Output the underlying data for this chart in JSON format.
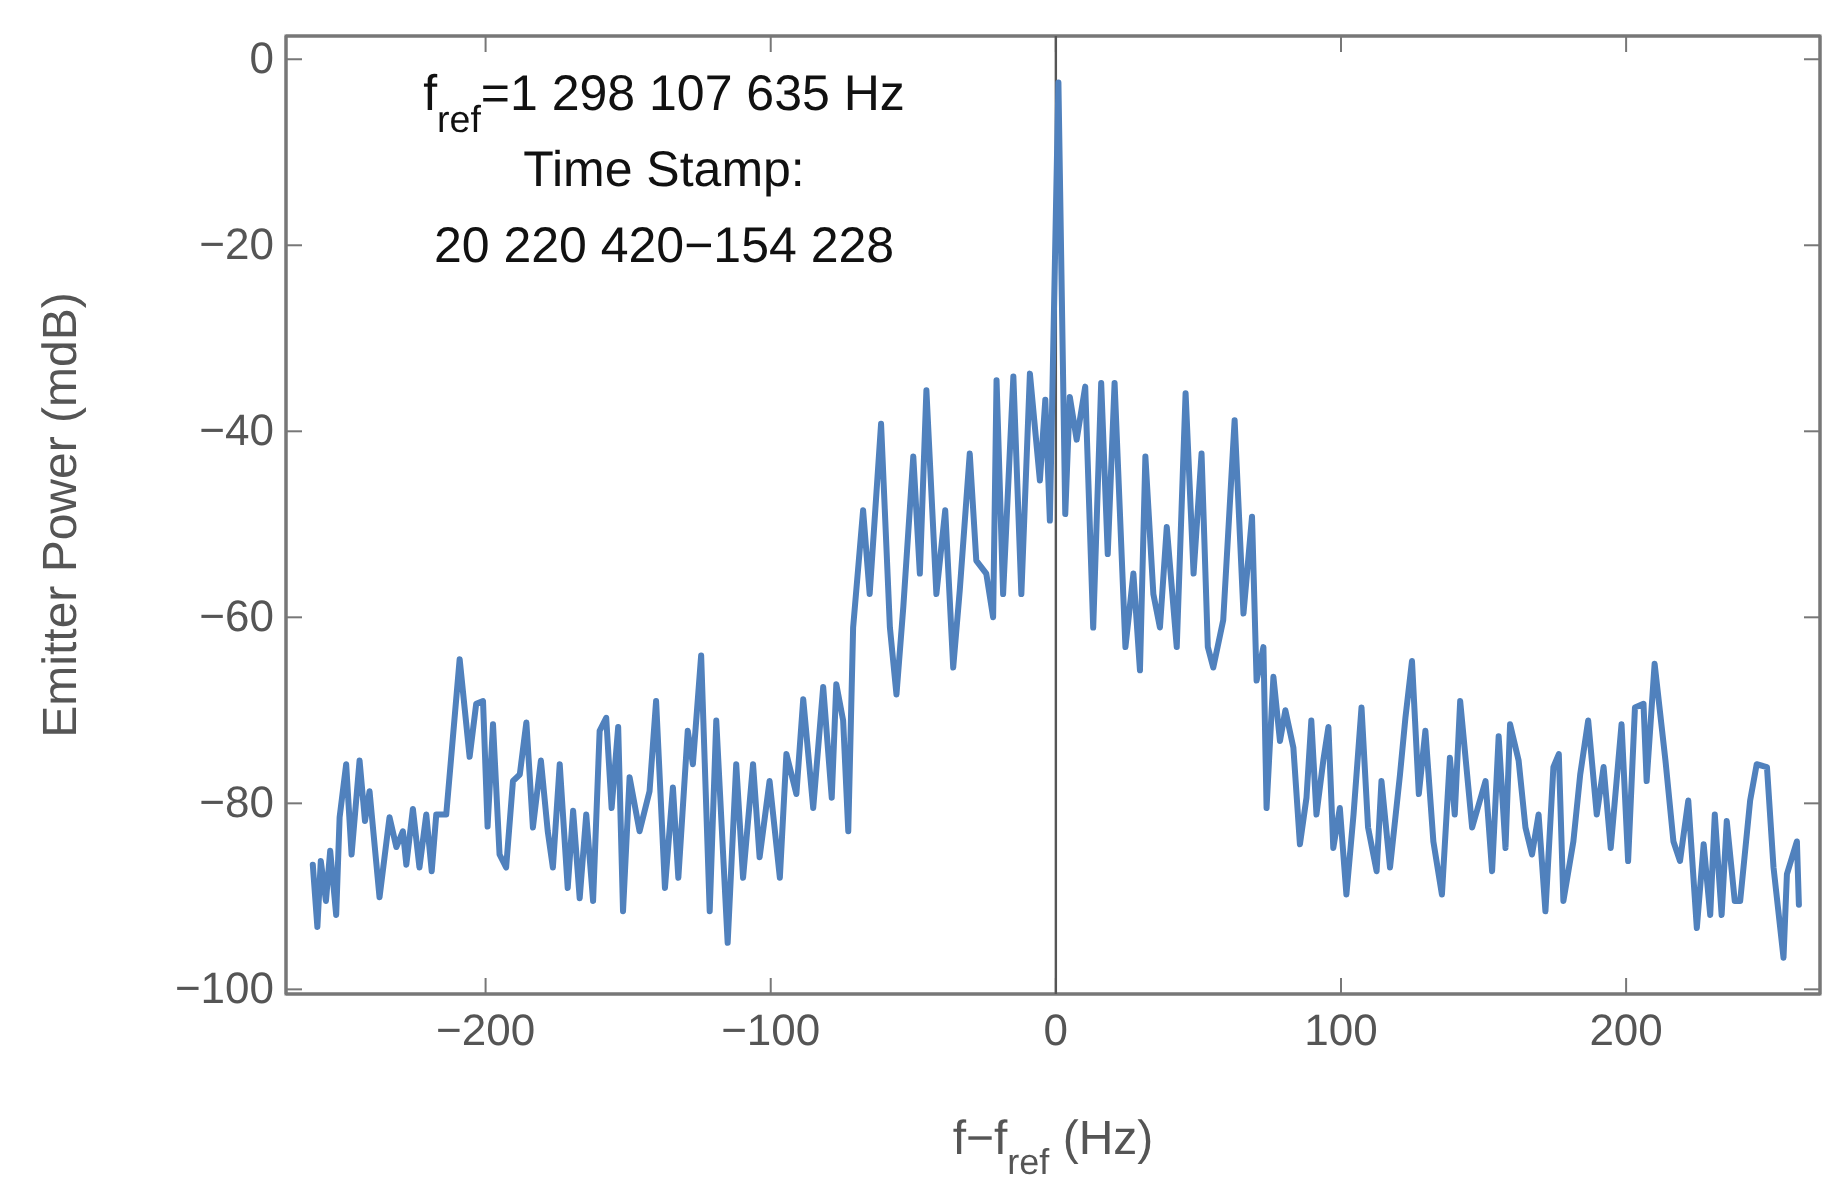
{
  "chart_data": {
    "type": "line",
    "xlabel": "f−f$_{ref}$ (Hz)",
    "ylabel": "Emitter Power (mdB)",
    "xlim": [
      -270,
      268
    ],
    "ylim": [
      -100.5,
      2.5
    ],
    "xticks": [
      {
        "value": -200,
        "label": "−200"
      },
      {
        "value": -100,
        "label": "−100"
      },
      {
        "value": 0,
        "label": "0"
      },
      {
        "value": 100,
        "label": "100"
      },
      {
        "value": 200,
        "label": "200"
      }
    ],
    "yticks": [
      {
        "value": 0,
        "label": "0"
      },
      {
        "value": -20,
        "label": "−20"
      },
      {
        "value": -40,
        "label": "−40"
      },
      {
        "value": -60,
        "label": "−60"
      },
      {
        "value": -80,
        "label": "−80"
      },
      {
        "value": -100,
        "label": "−100"
      }
    ],
    "grid": false,
    "marker": "none",
    "line_style": "solid",
    "ref_lines": [
      {
        "axis": "x",
        "value": 0,
        "color": "#555555"
      }
    ],
    "annotations": [
      "f$_{ref}$=1 298 107 635 Hz",
      "Time Stamp:",
      "20 220 420−154 228"
    ],
    "series": [
      {
        "color": "#5081bd",
        "x": [
          -260.6,
          -259,
          -257.8,
          -256,
          -254.5,
          -252.4,
          -251.2,
          -248.9,
          -247,
          -244.2,
          -242.3,
          -240.7,
          -237.2,
          -233.7,
          -231.3,
          -229,
          -227.8,
          -225.5,
          -223.2,
          -220.8,
          -218.9,
          -217.3,
          -213.8,
          -209.1,
          -205.6,
          -203.3,
          -200.9,
          -199.3,
          -197.4,
          -195.1,
          -192.8,
          -190.4,
          -188,
          -185.7,
          -183.4,
          -180.6,
          -178.2,
          -176.4,
          -174,
          -171.2,
          -169.3,
          -167,
          -164.7,
          -162.3,
          -160,
          -157.7,
          -155.8,
          -153.5,
          -151.8,
          -149.5,
          -146,
          -142.5,
          -140.2,
          -137.1,
          -134.3,
          -132.4,
          -129.1,
          -127.3,
          -124.4,
          -121.4,
          -119.1,
          -115.1,
          -112.1,
          -109.7,
          -106.2,
          -103.9,
          -100.4,
          -96.8,
          -94.5,
          -91,
          -88.6,
          -85.1,
          -81.6,
          -78.6,
          -77,
          -74.6,
          -72.8,
          -71.1,
          -67.6,
          -65.3,
          -61.3,
          -58.2,
          -55.9,
          -53.5,
          -50,
          -47.7,
          -45.4,
          -41.9,
          -38.8,
          -36,
          -33.7,
          -30.2,
          -27.9,
          -24.4,
          -22,
          -20.8,
          -18.5,
          -14.9,
          -12.1,
          -9.1,
          -5.6,
          -3.7,
          -2.1,
          0.9,
          3.3,
          4.9,
          7.3,
          10.3,
          13.1,
          15.9,
          18.2,
          20.6,
          24.4,
          27.2,
          29.5,
          31.4,
          34.2,
          36.5,
          38.9,
          42.4,
          45.5,
          48.3,
          51.1,
          53.3,
          55.2,
          58.7,
          62.7,
          65.8,
          68.8,
          70.4,
          72.8,
          73.9,
          76.3,
          78.6,
          80.5,
          83.3,
          85.6,
          87.9,
          89.6,
          91.4,
          93.8,
          95.6,
          97.3,
          99.6,
          101.9,
          104.4,
          107.2,
          109.5,
          112.5,
          114.2,
          117.2,
          120.7,
          122.6,
          124.9,
          127.3,
          129.6,
          132.4,
          135.4,
          138.2,
          139.9,
          141.8,
          146,
          150.7,
          153,
          155.3,
          157.7,
          159.3,
          162.3,
          164.7,
          167,
          169.3,
          171.7,
          174.5,
          176.4,
          178,
          181.5,
          183.9,
          186.7,
          189.7,
          192.1,
          194.6,
          198.4,
          200.7,
          203.1,
          206.1,
          207.2,
          210,
          213.8,
          216.6,
          218.9,
          221.8,
          224.8,
          227.2,
          229.5,
          231.1,
          233.5,
          235.3,
          238.1,
          240,
          243.5,
          245.8,
          249.4,
          251.7,
          255.2,
          256.4,
          259.9,
          260.6
        ],
        "values": [
          -86.6,
          -93.3,
          -86.2,
          -90.5,
          -85.1,
          -92,
          -81.5,
          -75.8,
          -85.5,
          -75.4,
          -81.9,
          -78.7,
          -90.1,
          -81.5,
          -84.7,
          -83,
          -86.6,
          -80.6,
          -86.9,
          -81.2,
          -87.3,
          -81.2,
          -81.2,
          -64.5,
          -75,
          -69.3,
          -69,
          -82.5,
          -71.5,
          -85.5,
          -86.9,
          -77.6,
          -76.9,
          -71.3,
          -82.6,
          -75.4,
          -83,
          -86.9,
          -75.8,
          -89.1,
          -80.8,
          -90.2,
          -81.2,
          -90.5,
          -72.2,
          -70.8,
          -80.5,
          -71.8,
          -91.6,
          -77.2,
          -83,
          -78.7,
          -69,
          -89.1,
          -78.3,
          -88,
          -72.2,
          -75.8,
          -64.1,
          -91.6,
          -71.1,
          -95,
          -75.8,
          -88,
          -75.8,
          -85.8,
          -77.6,
          -88,
          -74.7,
          -79,
          -68.8,
          -80.5,
          -67.5,
          -79.4,
          -67.2,
          -71.1,
          -83,
          -61.1,
          -48.5,
          -57.5,
          -39.2,
          -61.1,
          -68.3,
          -58.9,
          -42.7,
          -55.3,
          -35.6,
          -57.5,
          -48.5,
          -65.4,
          -57.1,
          -42.4,
          -53.9,
          -55.3,
          -60,
          -34.5,
          -57.5,
          -34.1,
          -57.5,
          -33.8,
          -45.3,
          -36.6,
          -49.6,
          -2.5,
          -48.9,
          -36.3,
          -40.9,
          -35.2,
          -61.1,
          -34.8,
          -53.2,
          -34.8,
          -63.2,
          -55.3,
          -65.7,
          -42.7,
          -57.5,
          -61.1,
          -50.3,
          -63.2,
          -35.9,
          -55.3,
          -42.4,
          -63.2,
          -65.4,
          -60.3,
          -38.8,
          -59.6,
          -49.2,
          -66.8,
          -63.2,
          -80.5,
          -66.4,
          -73.3,
          -70,
          -74,
          -84.4,
          -79.4,
          -71.1,
          -81.2,
          -75.4,
          -71.8,
          -84.8,
          -80.5,
          -89.8,
          -81.2,
          -69.7,
          -82.6,
          -87.3,
          -77.6,
          -86.9,
          -76.9,
          -70.8,
          -64.7,
          -79,
          -72.2,
          -84.1,
          -89.8,
          -75.1,
          -81.2,
          -69,
          -82.6,
          -77.6,
          -87.3,
          -72.8,
          -84.8,
          -71.5,
          -75.4,
          -82.6,
          -85.5,
          -81.2,
          -91.6,
          -76.1,
          -74.7,
          -90.5,
          -84.1,
          -76.9,
          -71.1,
          -81.2,
          -76.1,
          -84.8,
          -71.5,
          -86.2,
          -69.7,
          -69.3,
          -77.6,
          -65,
          -75.4,
          -84.1,
          -86.2,
          -79.7,
          -93.4,
          -84.4,
          -92,
          -81.2,
          -92,
          -81.9,
          -90.5,
          -90.5,
          -79.7,
          -75.8,
          -76.1,
          -86.9,
          -96.6,
          -87.6,
          -84.1,
          -90.9
        ]
      }
    ]
  }
}
